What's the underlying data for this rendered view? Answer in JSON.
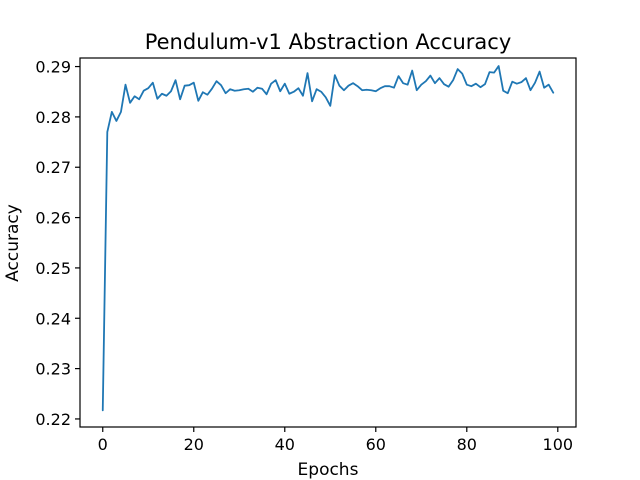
{
  "chart_data": {
    "type": "line",
    "title": "Pendulum-v1 Abstraction Accuracy",
    "xlabel": "Epochs",
    "ylabel": "Accuracy",
    "xlim": [
      -5.0,
      104.0
    ],
    "ylim": [
      0.2184,
      0.2917
    ],
    "xticks": [
      0,
      20,
      40,
      60,
      80,
      100
    ],
    "xtick_labels": [
      "0",
      "20",
      "40",
      "60",
      "80",
      "100"
    ],
    "yticks": [
      0.22,
      0.23,
      0.24,
      0.25,
      0.26,
      0.27,
      0.28,
      0.29
    ],
    "ytick_labels": [
      "0.22",
      "0.23",
      "0.24",
      "0.25",
      "0.26",
      "0.27",
      "0.28",
      "0.29"
    ],
    "grid": false,
    "series": [
      {
        "color": "#1f77b4",
        "x": [
          0,
          1,
          2,
          3,
          4,
          5,
          6,
          7,
          8,
          9,
          10,
          11,
          12,
          13,
          14,
          15,
          16,
          17,
          18,
          19,
          20,
          21,
          22,
          23,
          24,
          25,
          26,
          27,
          28,
          29,
          30,
          31,
          32,
          33,
          34,
          35,
          36,
          37,
          38,
          39,
          40,
          41,
          42,
          43,
          44,
          45,
          46,
          47,
          48,
          49,
          50,
          51,
          52,
          53,
          54,
          55,
          56,
          57,
          58,
          59,
          60,
          61,
          62,
          63,
          64,
          65,
          66,
          67,
          68,
          69,
          70,
          71,
          72,
          73,
          74,
          75,
          76,
          77,
          78,
          79,
          80,
          81,
          82,
          83,
          84,
          85,
          86,
          87,
          88,
          89,
          90,
          91,
          92,
          93,
          94,
          95,
          96,
          97,
          98,
          99
        ],
        "y": [
          0.2217,
          0.277,
          0.281,
          0.2792,
          0.281,
          0.2864,
          0.2828,
          0.2841,
          0.2835,
          0.2852,
          0.2857,
          0.2868,
          0.2836,
          0.2846,
          0.2842,
          0.2851,
          0.2873,
          0.2835,
          0.2862,
          0.2863,
          0.2868,
          0.2832,
          0.2849,
          0.2844,
          0.2856,
          0.2871,
          0.2863,
          0.2847,
          0.2855,
          0.2852,
          0.2853,
          0.2855,
          0.2856,
          0.285,
          0.2858,
          0.2856,
          0.2845,
          0.2866,
          0.2873,
          0.2851,
          0.2866,
          0.2846,
          0.285,
          0.2857,
          0.2842,
          0.2887,
          0.2831,
          0.2855,
          0.285,
          0.2839,
          0.2822,
          0.2883,
          0.2862,
          0.2853,
          0.2862,
          0.2867,
          0.2861,
          0.2853,
          0.2854,
          0.2853,
          0.2851,
          0.2857,
          0.2861,
          0.2861,
          0.2858,
          0.2881,
          0.2867,
          0.2864,
          0.2892,
          0.2853,
          0.2864,
          0.2871,
          0.2882,
          0.2867,
          0.2877,
          0.2865,
          0.286,
          0.2873,
          0.2895,
          0.2886,
          0.2864,
          0.2861,
          0.2866,
          0.2859,
          0.2865,
          0.2889,
          0.2888,
          0.2901,
          0.2852,
          0.2847,
          0.287,
          0.2866,
          0.2869,
          0.2877,
          0.2853,
          0.2868,
          0.289,
          0.2858,
          0.2864,
          0.2848
        ]
      }
    ]
  }
}
